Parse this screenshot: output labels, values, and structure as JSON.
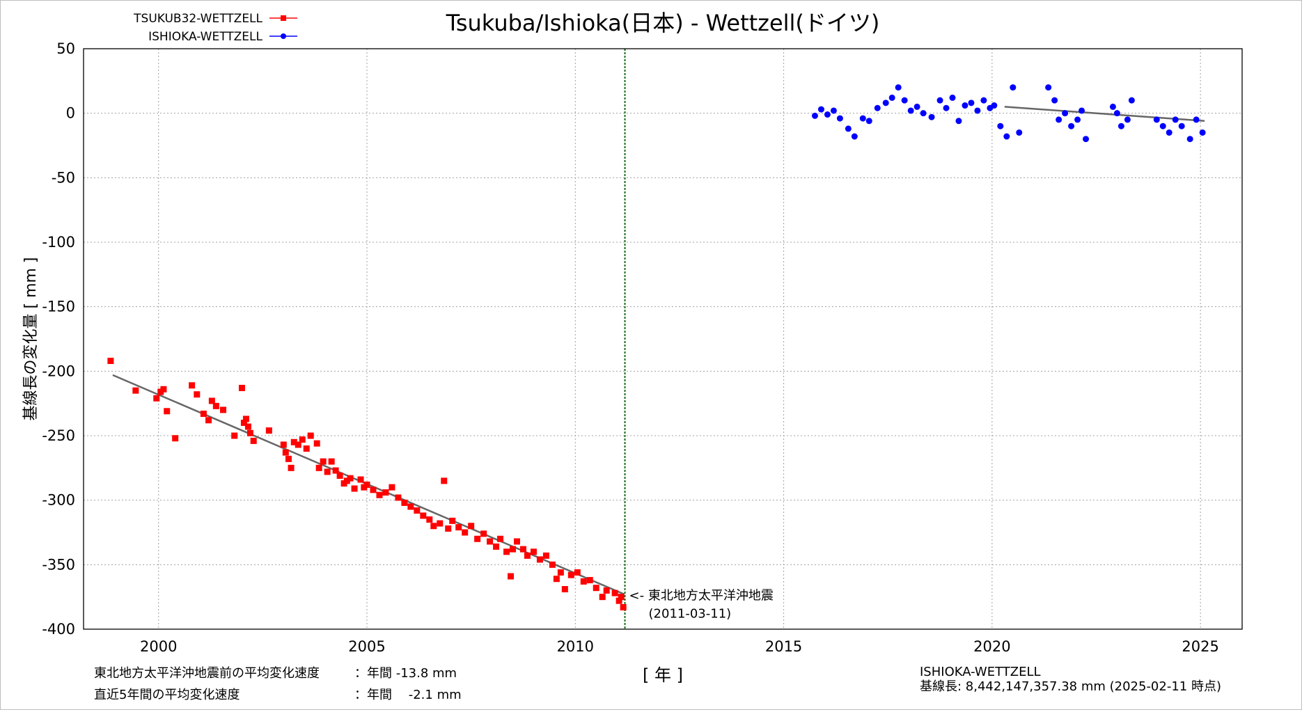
{
  "chart_data": {
    "type": "scatter",
    "title": "Tsukuba/Ishioka(日本) - Wettzell(ドイツ)",
    "xlabel": "[ 年 ]",
    "ylabel": "基線長の変化量 [ mm ]",
    "xlim": [
      1998.2,
      2026.0
    ],
    "ylim": [
      -400,
      50
    ],
    "x_ticks": [
      2000,
      2005,
      2010,
      2015,
      2020,
      2025
    ],
    "y_ticks": [
      50,
      0,
      -50,
      -100,
      -150,
      -200,
      -250,
      -300,
      -350,
      -400
    ],
    "grid": true,
    "legend_position": "top-left",
    "event_line": {
      "x": 2011.19,
      "color": "#1a6b1a",
      "label": "<- 東北地方太平洋沖地震",
      "date": "(2011-03-11)"
    },
    "series": [
      {
        "name": "TSUKUB32-WETTZELL",
        "color": "#ff0000",
        "marker": "square",
        "trend": {
          "x": [
            1998.9,
            2011.18
          ],
          "y": [
            -203,
            -373
          ]
        },
        "points": [
          [
            1998.85,
            -192
          ],
          [
            1999.45,
            -215
          ],
          [
            1999.95,
            -221
          ],
          [
            2000.05,
            -216
          ],
          [
            2000.12,
            -214
          ],
          [
            2000.2,
            -231
          ],
          [
            2000.4,
            -252
          ],
          [
            2000.8,
            -211
          ],
          [
            2000.92,
            -218
          ],
          [
            2001.08,
            -233
          ],
          [
            2001.2,
            -238
          ],
          [
            2001.28,
            -223
          ],
          [
            2001.38,
            -227
          ],
          [
            2001.55,
            -230
          ],
          [
            2001.82,
            -250
          ],
          [
            2002.0,
            -213
          ],
          [
            2002.05,
            -240
          ],
          [
            2002.1,
            -237
          ],
          [
            2002.15,
            -243
          ],
          [
            2002.2,
            -248
          ],
          [
            2002.28,
            -254
          ],
          [
            2002.65,
            -246
          ],
          [
            2003.0,
            -257
          ],
          [
            2003.05,
            -263
          ],
          [
            2003.12,
            -268
          ],
          [
            2003.18,
            -275
          ],
          [
            2003.25,
            -255
          ],
          [
            2003.35,
            -257
          ],
          [
            2003.45,
            -253
          ],
          [
            2003.55,
            -260
          ],
          [
            2003.65,
            -250
          ],
          [
            2003.8,
            -256
          ],
          [
            2003.85,
            -275
          ],
          [
            2003.95,
            -270
          ],
          [
            2004.05,
            -278
          ],
          [
            2004.15,
            -270
          ],
          [
            2004.25,
            -277
          ],
          [
            2004.35,
            -281
          ],
          [
            2004.45,
            -287
          ],
          [
            2004.52,
            -285
          ],
          [
            2004.6,
            -283
          ],
          [
            2004.7,
            -291
          ],
          [
            2004.85,
            -284
          ],
          [
            2004.93,
            -290
          ],
          [
            2005.0,
            -288
          ],
          [
            2005.15,
            -292
          ],
          [
            2005.3,
            -296
          ],
          [
            2005.45,
            -294
          ],
          [
            2005.6,
            -290
          ],
          [
            2005.75,
            -298
          ],
          [
            2005.9,
            -302
          ],
          [
            2006.05,
            -305
          ],
          [
            2006.2,
            -308
          ],
          [
            2006.35,
            -312
          ],
          [
            2006.5,
            -315
          ],
          [
            2006.6,
            -320
          ],
          [
            2006.75,
            -318
          ],
          [
            2006.85,
            -285
          ],
          [
            2006.95,
            -322
          ],
          [
            2007.05,
            -316
          ],
          [
            2007.2,
            -321
          ],
          [
            2007.35,
            -325
          ],
          [
            2007.5,
            -320
          ],
          [
            2007.65,
            -330
          ],
          [
            2007.8,
            -326
          ],
          [
            2007.95,
            -332
          ],
          [
            2008.1,
            -336
          ],
          [
            2008.2,
            -330
          ],
          [
            2008.35,
            -340
          ],
          [
            2008.45,
            -359
          ],
          [
            2008.5,
            -338
          ],
          [
            2008.6,
            -332
          ],
          [
            2008.75,
            -338
          ],
          [
            2008.85,
            -343
          ],
          [
            2009.0,
            -340
          ],
          [
            2009.15,
            -346
          ],
          [
            2009.3,
            -343
          ],
          [
            2009.45,
            -350
          ],
          [
            2009.55,
            -361
          ],
          [
            2009.65,
            -356
          ],
          [
            2009.75,
            -369
          ],
          [
            2009.9,
            -358
          ],
          [
            2010.05,
            -356
          ],
          [
            2010.2,
            -363
          ],
          [
            2010.35,
            -362
          ],
          [
            2010.5,
            -368
          ],
          [
            2010.65,
            -375
          ],
          [
            2010.75,
            -370
          ],
          [
            2010.95,
            -372
          ],
          [
            2011.05,
            -378
          ],
          [
            2011.1,
            -375
          ],
          [
            2011.15,
            -383
          ]
        ]
      },
      {
        "name": "ISHIOKA-WETTZELL",
        "color": "#0000ff",
        "marker": "circle",
        "trend": {
          "x": [
            2020.3,
            2025.1
          ],
          "y": [
            5,
            -6
          ]
        },
        "points": [
          [
            2015.75,
            -2
          ],
          [
            2015.9,
            3
          ],
          [
            2016.05,
            -1
          ],
          [
            2016.2,
            2
          ],
          [
            2016.35,
            -4
          ],
          [
            2016.55,
            -12
          ],
          [
            2016.7,
            -18
          ],
          [
            2016.9,
            -4
          ],
          [
            2017.05,
            -6
          ],
          [
            2017.25,
            4
          ],
          [
            2017.45,
            8
          ],
          [
            2017.6,
            12
          ],
          [
            2017.75,
            20
          ],
          [
            2017.9,
            10
          ],
          [
            2018.05,
            2
          ],
          [
            2018.2,
            5
          ],
          [
            2018.35,
            0
          ],
          [
            2018.55,
            -3
          ],
          [
            2018.75,
            10
          ],
          [
            2018.9,
            4
          ],
          [
            2019.05,
            12
          ],
          [
            2019.2,
            -6
          ],
          [
            2019.35,
            6
          ],
          [
            2019.5,
            8
          ],
          [
            2019.65,
            2
          ],
          [
            2019.8,
            10
          ],
          [
            2019.95,
            4
          ],
          [
            2020.05,
            6
          ],
          [
            2020.2,
            -10
          ],
          [
            2020.35,
            -18
          ],
          [
            2020.5,
            20
          ],
          [
            2020.65,
            -15
          ],
          [
            2021.35,
            20
          ],
          [
            2021.5,
            10
          ],
          [
            2021.6,
            -5
          ],
          [
            2021.75,
            0
          ],
          [
            2021.9,
            -10
          ],
          [
            2022.05,
            -5
          ],
          [
            2022.15,
            2
          ],
          [
            2022.25,
            -20
          ],
          [
            2022.9,
            5
          ],
          [
            2023.0,
            0
          ],
          [
            2023.1,
            -10
          ],
          [
            2023.25,
            -5
          ],
          [
            2023.35,
            10
          ],
          [
            2023.95,
            -5
          ],
          [
            2024.1,
            -10
          ],
          [
            2024.25,
            -15
          ],
          [
            2024.4,
            -5
          ],
          [
            2024.55,
            -10
          ],
          [
            2024.75,
            -20
          ],
          [
            2024.9,
            -5
          ],
          [
            2025.05,
            -15
          ]
        ]
      }
    ]
  },
  "footer": {
    "rate_pre_label": "東北地方太平洋沖地震前の平均変化速度",
    "rate_pre_value": "：年間 -13.8 mm",
    "rate_recent_label": "直近5年間の平均変化速度",
    "rate_recent_value": "：年間 　-2.1 mm",
    "baseline_name": "ISHIOKA-WETTZELL",
    "baseline_length": "基線長: 8,442,147,357.38 mm (2025-02-11 時点)"
  }
}
